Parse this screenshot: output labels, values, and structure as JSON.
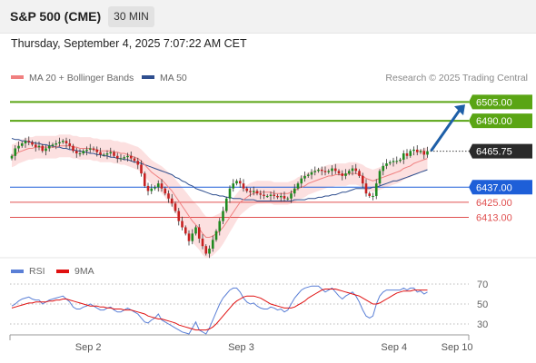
{
  "header": {
    "title": "S&P 500 (CME)",
    "timeframe": "30 MIN",
    "timestamp": "Thursday, September 4, 2025 7:07:22 AM CET"
  },
  "legend": {
    "items": [
      {
        "label": "MA 20 + Bollinger Bands",
        "color": "#f08080"
      },
      {
        "label": "MA 50",
        "color": "#2f4f8f"
      }
    ],
    "credit": "Research © 2025 Trading Central"
  },
  "chart_data": [
    {
      "type": "candlestick",
      "price_range": [
        6380,
        6514
      ],
      "last_price": {
        "value": 6465.75,
        "label": "6465.75"
      },
      "levels": [
        {
          "value": 6505.0,
          "label": "6505.00",
          "kind": "resistance",
          "color": "#5aa514"
        },
        {
          "value": 6490.0,
          "label": "6490.00",
          "kind": "resistance",
          "color": "#5aa514"
        },
        {
          "value": 6437.0,
          "label": "6437.00",
          "kind": "pivot",
          "color": "#1e5fd8"
        },
        {
          "value": 6425.0,
          "label": "6425.00",
          "kind": "support",
          "color": "#e05050"
        },
        {
          "value": 6413.0,
          "label": "6413.00",
          "kind": "support",
          "color": "#e05050"
        }
      ],
      "forecast_arrow": {
        "from": 6466,
        "to": 6503,
        "color": "#1e5fa8"
      },
      "closes": [
        6462,
        6468,
        6470,
        6472,
        6474,
        6473,
        6471,
        6469,
        6470,
        6466,
        6468,
        6470,
        6471,
        6472,
        6473,
        6474,
        6472,
        6470,
        6466,
        6464,
        6464,
        6466,
        6467,
        6468,
        6467,
        6465,
        6463,
        6463,
        6464,
        6465,
        6462,
        6460,
        6460,
        6461,
        6462,
        6460,
        6458,
        6455,
        6448,
        6438,
        6434,
        6436,
        6437,
        6440,
        6436,
        6432,
        6428,
        6424,
        6418,
        6410,
        6405,
        6400,
        6394,
        6400,
        6405,
        6396,
        6390,
        6384,
        6388,
        6395,
        6402,
        6410,
        6418,
        6428,
        6436,
        6440,
        6442,
        6440,
        6436,
        6434,
        6433,
        6434,
        6432,
        6431,
        6430,
        6430,
        6431,
        6430,
        6429,
        6430,
        6428,
        6428,
        6432,
        6436,
        6440,
        6444,
        6446,
        6447,
        6449,
        6450,
        6451,
        6450,
        6449,
        6450,
        6452,
        6450,
        6448,
        6446,
        6448,
        6450,
        6452,
        6450,
        6446,
        6440,
        6432,
        6430,
        6430,
        6440,
        6450,
        6454,
        6456,
        6457,
        6458,
        6458,
        6459,
        6464,
        6462,
        6466,
        6467,
        6465,
        6466,
        6463,
        6465.75
      ],
      "ma20": [
        6462,
        6463,
        6465,
        6466,
        6467,
        6468,
        6468,
        6469,
        6469,
        6469,
        6469,
        6469,
        6469,
        6469,
        6470,
        6470,
        6470,
        6470,
        6469,
        6469,
        6468,
        6468,
        6468,
        6468,
        6467,
        6467,
        6466,
        6466,
        6466,
        6466,
        6465,
        6465,
        6464,
        6464,
        6463,
        6462,
        6461,
        6460,
        6458,
        6455,
        6452,
        6449,
        6447,
        6445,
        6443,
        6440,
        6437,
        6434,
        6430,
        6426,
        6422,
        6418,
        6414,
        6410,
        6407,
        6404,
        6400,
        6397,
        6397,
        6398,
        6400,
        6402,
        6405,
        6409,
        6413,
        6417,
        6421,
        6425,
        6427,
        6429,
        6431,
        6432,
        6433,
        6433,
        6433,
        6433,
        6433,
        6432,
        6432,
        6432,
        6432,
        6432,
        6433,
        6434,
        6436,
        6437,
        6438,
        6440,
        6441,
        6442,
        6443,
        6444,
        6445,
        6446,
        6446,
        6447,
        6447,
        6447,
        6447,
        6448,
        6448,
        6448,
        6447,
        6446,
        6444,
        6443,
        6442,
        6443,
        6444,
        6445,
        6446,
        6447,
        6448,
        6449,
        6450,
        6452,
        6453,
        6454,
        6456,
        6457,
        6458,
        6459,
        6460
      ],
      "ma50": [
        6476,
        6475,
        6475,
        6474,
        6474,
        6473,
        6473,
        6472,
        6472,
        6471,
        6471,
        6470,
        6470,
        6469,
        6469,
        6468,
        6468,
        6467,
        6467,
        6466,
        6466,
        6465,
        6465,
        6464,
        6464,
        6463,
        6463,
        6462,
        6462,
        6461,
        6461,
        6460,
        6460,
        6459,
        6459,
        6458,
        6457,
        6457,
        6456,
        6455,
        6454,
        6453,
        6452,
        6451,
        6450,
        6449,
        6448,
        6447,
        6445,
        6444,
        6442,
        6441,
        6439,
        6438,
        6436,
        6435,
        6434,
        6433,
        6432,
        6431,
        6431,
        6430,
        6430,
        6429,
        6429,
        6428,
        6428,
        6428,
        6427,
        6427,
        6427,
        6427,
        6426,
        6426,
        6426,
        6426,
        6426,
        6426,
        6426,
        6426,
        6426,
        6426,
        6426,
        6427,
        6427,
        6427,
        6427,
        6428,
        6428,
        6428,
        6429,
        6429,
        6430,
        6430,
        6431,
        6431,
        6432,
        6433,
        6433,
        6434,
        6435,
        6436,
        6436,
        6436,
        6436,
        6436,
        6437,
        6437,
        6438,
        6439,
        6440,
        6441,
        6442,
        6442,
        6443,
        6444,
        6445,
        6446,
        6447,
        6448,
        6449,
        6450,
        6451
      ],
      "x_ticks": [
        {
          "label": "Sep 2",
          "i": 17
        },
        {
          "label": "Sep 3",
          "i": 51
        },
        {
          "label": "Sep 4",
          "i": 85
        },
        {
          "label": "Sep 10",
          "i": 99
        }
      ]
    },
    {
      "type": "line",
      "legend": [
        {
          "label": "RSI",
          "color": "#5a7fd6"
        },
        {
          "label": "9MA",
          "color": "#e01010"
        }
      ],
      "ylim": [
        20,
        80
      ],
      "y_ticks": [
        70,
        50,
        30
      ],
      "rsi": [
        48,
        50,
        53,
        55,
        56,
        57,
        55,
        54,
        54,
        50,
        52,
        54,
        55,
        56,
        57,
        58,
        55,
        52,
        47,
        45,
        45,
        47,
        48,
        50,
        48,
        46,
        44,
        44,
        46,
        47,
        44,
        42,
        42,
        44,
        46,
        44,
        42,
        40,
        36,
        32,
        31,
        34,
        36,
        40,
        34,
        32,
        30,
        28,
        26,
        24,
        22,
        21,
        20,
        26,
        32,
        24,
        22,
        20,
        26,
        34,
        42,
        50,
        56,
        60,
        64,
        66,
        66,
        62,
        56,
        52,
        50,
        51,
        48,
        46,
        45,
        45,
        47,
        46,
        44,
        45,
        42,
        44,
        50,
        56,
        60,
        64,
        66,
        67,
        68,
        68,
        68,
        65,
        62,
        64,
        66,
        62,
        58,
        55,
        58,
        60,
        62,
        58,
        52,
        44,
        38,
        36,
        38,
        50,
        58,
        62,
        64,
        64,
        64,
        64,
        64,
        66,
        64,
        66,
        66,
        62,
        63,
        60,
        62
      ],
      "ma9": [
        46,
        47,
        48,
        49,
        50,
        51,
        51,
        52,
        52,
        52,
        52,
        53,
        53,
        54,
        54,
        55,
        55,
        54,
        53,
        52,
        51,
        50,
        49,
        48,
        48,
        48,
        47,
        47,
        46,
        46,
        45,
        45,
        45,
        44,
        44,
        44,
        43,
        42,
        41,
        40,
        38,
        37,
        36,
        35,
        35,
        34,
        33,
        32,
        31,
        29,
        28,
        27,
        26,
        25,
        24,
        24,
        24,
        24,
        25,
        27,
        30,
        34,
        38,
        42,
        46,
        50,
        53,
        55,
        57,
        58,
        58,
        58,
        57,
        56,
        54,
        52,
        50,
        49,
        48,
        47,
        46,
        46,
        46,
        47,
        49,
        51,
        53,
        56,
        58,
        60,
        62,
        64,
        65,
        65,
        65,
        65,
        64,
        63,
        62,
        61,
        60,
        59,
        58,
        56,
        54,
        52,
        50,
        50,
        51,
        53,
        55,
        57,
        59,
        61,
        62,
        63,
        63,
        63,
        64,
        64,
        64,
        64,
        64
      ]
    }
  ]
}
